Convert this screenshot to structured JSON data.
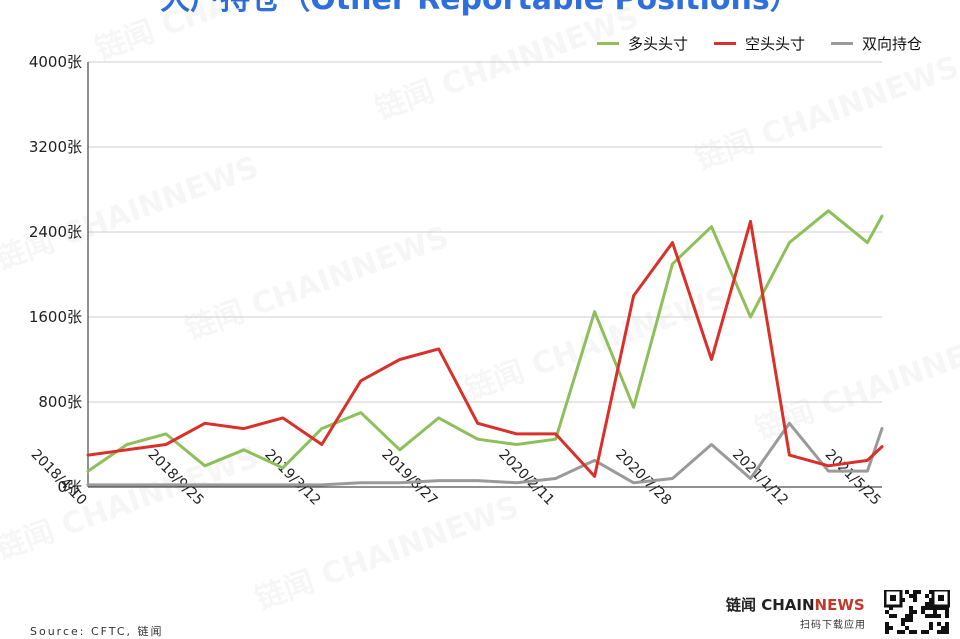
{
  "title": "大户持仓（Other Reportable Positions）",
  "legend": [
    {
      "name": "多头头寸",
      "color": "#8dc05a"
    },
    {
      "name": "空头头寸",
      "color": "#d9302a"
    },
    {
      "name": "双向持仓",
      "color": "#9a9a9a"
    }
  ],
  "source": "Source: CFTC, 链闻",
  "brand": {
    "main": "链闻 CHAIN",
    "accent": "NEWS",
    "sub": "扫码下载应用"
  },
  "watermark": "链闻 CHAINNEWS",
  "chart_data": {
    "type": "line",
    "x_type": "date",
    "x": [
      "2018-04-10",
      "2018-06-05",
      "2018-07-31",
      "2018-09-25",
      "2018-11-20",
      "2019-01-15",
      "2019-03-12",
      "2019-05-07",
      "2019-07-02",
      "2019-08-27",
      "2019-10-22",
      "2019-12-17",
      "2020-02-11",
      "2020-04-07",
      "2020-06-02",
      "2020-07-28",
      "2020-09-22",
      "2020-11-17",
      "2021-01-12",
      "2021-03-09",
      "2021-05-04",
      "2021-05-25"
    ],
    "series": [
      {
        "name": "多头头寸",
        "color": "#8dc05a",
        "values": [
          150,
          400,
          500,
          200,
          350,
          180,
          550,
          700,
          350,
          650,
          450,
          400,
          450,
          1650,
          750,
          2100,
          2450,
          1600,
          2300,
          2600,
          2300,
          2550
        ]
      },
      {
        "name": "空头头寸",
        "color": "#d9302a",
        "values": [
          300,
          350,
          400,
          600,
          550,
          650,
          400,
          1000,
          1200,
          1300,
          600,
          500,
          500,
          100,
          1800,
          2300,
          1200,
          2500,
          300,
          200,
          250,
          380
        ]
      },
      {
        "name": "双向持仓",
        "color": "#9a9a9a",
        "values": [
          20,
          20,
          20,
          20,
          20,
          20,
          20,
          40,
          40,
          60,
          60,
          40,
          80,
          250,
          40,
          80,
          400,
          80,
          600,
          150,
          150,
          550
        ]
      }
    ],
    "ylim": [
      0,
      4000
    ],
    "y_ticks": [
      0,
      800,
      1600,
      2400,
      3200,
      4000
    ],
    "y_tick_labels": [
      "0张",
      "800张",
      "1600张",
      "2400张",
      "3200张",
      "4000张"
    ],
    "x_ticks": [
      "2018/4/10",
      "2018/9/25",
      "2019/3/12",
      "2019/8/27",
      "2020/2/11",
      "2020/7/28",
      "2021/1/12",
      "2021/5/25"
    ],
    "x_tick_dates": [
      "2018-04-10",
      "2018-09-25",
      "2019-03-12",
      "2019-08-27",
      "2020-02-11",
      "2020-07-28",
      "2021-01-12",
      "2021-05-25"
    ],
    "grid": "horizontal",
    "legend_position": "top-right",
    "xlabel": "",
    "ylabel": ""
  }
}
